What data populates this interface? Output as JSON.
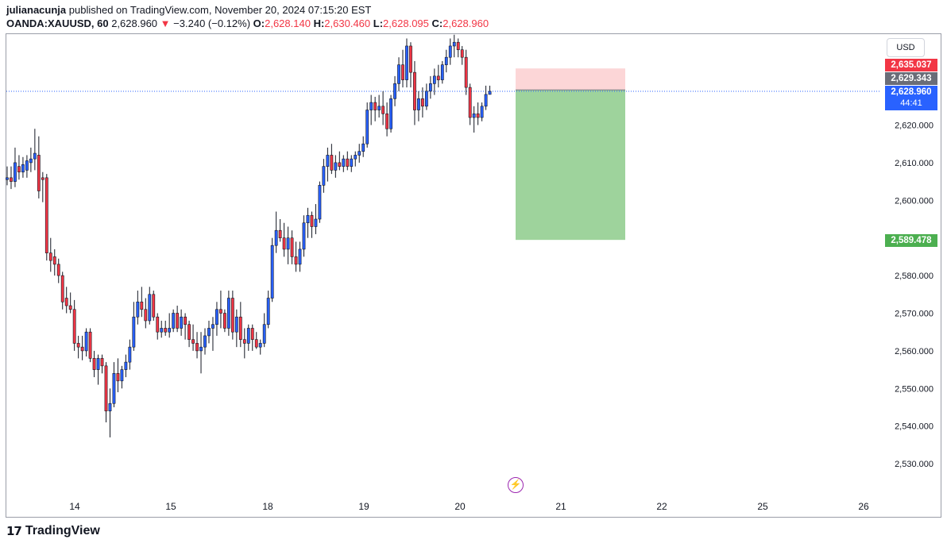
{
  "header": {
    "author": "julianacunja",
    "published_text": "published on TradingView.com, November 20, 2024 07:15:20 EST",
    "symbol": "OANDA:XAUUSD, 60",
    "last": "2,628.960",
    "change": "−3.240 (−0.12%)",
    "change_arrow": "▼",
    "open_label": "O:",
    "open": "2,628.140",
    "high_label": "H:",
    "high": "2,630.460",
    "low_label": "L:",
    "low": "2,628.095",
    "close_label": "C:",
    "close": "2,628.960"
  },
  "scale": {
    "currency_button": "USD"
  },
  "price_tags": {
    "stop": "2,635.037",
    "entry": "2,629.343",
    "current": "2,628.960",
    "countdown": "44:41",
    "target": "2,589.478"
  },
  "brand": {
    "name": "TradingView"
  },
  "icons": {
    "logo": "tradingview-logo-icon",
    "event": "lightning-bolt-icon"
  },
  "colors": {
    "up_candle": "#2962ff",
    "down_candle": "#f23645",
    "wick": "#131722",
    "stop_zone": "#fcd6d7",
    "target_zone": "#9ed39c",
    "current_price_line": "#2962ff"
  },
  "chart_data": {
    "type": "candlestick",
    "symbol": "OANDA:XAUUSD",
    "interval": "60",
    "x_ticks": [
      "14",
      "15",
      "18",
      "19",
      "20",
      "21",
      "22",
      "25",
      "26"
    ],
    "y_ticks": [
      "2,530.000",
      "2,540.000",
      "2,550.000",
      "2,560.000",
      "2,570.000",
      "2,580.000",
      "2,600.000",
      "2,610.000",
      "2,620.000"
    ],
    "ylim": [
      2520,
      2648
    ],
    "grid": false,
    "position_tool": {
      "type": "short",
      "entry": 2629.343,
      "stop": 2635.037,
      "target": 2589.478
    },
    "current_price": 2628.96,
    "candles": [
      {
        "o": 2605.5,
        "h": 2609.0,
        "l": 2604.0,
        "c": 2606.0
      },
      {
        "o": 2606.0,
        "h": 2609.0,
        "l": 2603.0,
        "c": 2605.0
      },
      {
        "o": 2605.0,
        "h": 2614.0,
        "l": 2603.5,
        "c": 2610.0
      },
      {
        "o": 2609.0,
        "h": 2612.0,
        "l": 2605.5,
        "c": 2607.5
      },
      {
        "o": 2607.5,
        "h": 2611.5,
        "l": 2606.0,
        "c": 2609.5
      },
      {
        "o": 2608.0,
        "h": 2612.0,
        "l": 2606.0,
        "c": 2610.5
      },
      {
        "o": 2610.0,
        "h": 2614.0,
        "l": 2607.5,
        "c": 2611.0
      },
      {
        "o": 2611.0,
        "h": 2619.0,
        "l": 2608.0,
        "c": 2612.5
      },
      {
        "o": 2612.0,
        "h": 2617.0,
        "l": 2600.5,
        "c": 2602.5
      },
      {
        "o": 2606.0,
        "h": 2607.5,
        "l": 2599.5,
        "c": 2605.5
      },
      {
        "o": 2606.0,
        "h": 2607.0,
        "l": 2584.0,
        "c": 2586.0
      },
      {
        "o": 2586.0,
        "h": 2590.0,
        "l": 2581.0,
        "c": 2584.0
      },
      {
        "o": 2585.0,
        "h": 2587.0,
        "l": 2580.0,
        "c": 2583.0
      },
      {
        "o": 2583.0,
        "h": 2584.5,
        "l": 2578.0,
        "c": 2580.0
      },
      {
        "o": 2580.0,
        "h": 2581.0,
        "l": 2571.0,
        "c": 2573.0
      },
      {
        "o": 2574.0,
        "h": 2577.0,
        "l": 2570.0,
        "c": 2572.0
      },
      {
        "o": 2572.0,
        "h": 2575.5,
        "l": 2570.0,
        "c": 2571.0
      },
      {
        "o": 2571.0,
        "h": 2573.5,
        "l": 2560.0,
        "c": 2562.0
      },
      {
        "o": 2562.0,
        "h": 2564.0,
        "l": 2558.0,
        "c": 2561.0
      },
      {
        "o": 2561.0,
        "h": 2564.0,
        "l": 2557.5,
        "c": 2560.0
      },
      {
        "o": 2560.0,
        "h": 2566.0,
        "l": 2558.5,
        "c": 2565.0
      },
      {
        "o": 2565.0,
        "h": 2566.0,
        "l": 2557.0,
        "c": 2558.0
      },
      {
        "o": 2558.0,
        "h": 2560.0,
        "l": 2553.0,
        "c": 2555.0
      },
      {
        "o": 2555.0,
        "h": 2559.0,
        "l": 2551.0,
        "c": 2558.0
      },
      {
        "o": 2558.0,
        "h": 2559.0,
        "l": 2554.0,
        "c": 2556.0
      },
      {
        "o": 2556.0,
        "h": 2557.0,
        "l": 2541.0,
        "c": 2544.0
      },
      {
        "o": 2544.0,
        "h": 2550.0,
        "l": 2537.0,
        "c": 2546.0
      },
      {
        "o": 2546.0,
        "h": 2557.0,
        "l": 2545.0,
        "c": 2554.0
      },
      {
        "o": 2554.0,
        "h": 2558.0,
        "l": 2549.0,
        "c": 2552.0
      },
      {
        "o": 2552.0,
        "h": 2556.0,
        "l": 2550.0,
        "c": 2555.0
      },
      {
        "o": 2555.0,
        "h": 2559.0,
        "l": 2553.0,
        "c": 2557.0
      },
      {
        "o": 2557.0,
        "h": 2563.0,
        "l": 2555.0,
        "c": 2561.0
      },
      {
        "o": 2561.0,
        "h": 2573.0,
        "l": 2560.0,
        "c": 2569.0
      },
      {
        "o": 2569.0,
        "h": 2576.0,
        "l": 2567.0,
        "c": 2573.0
      },
      {
        "o": 2573.0,
        "h": 2577.0,
        "l": 2569.0,
        "c": 2571.0
      },
      {
        "o": 2571.0,
        "h": 2574.0,
        "l": 2566.0,
        "c": 2568.0
      },
      {
        "o": 2568.0,
        "h": 2577.0,
        "l": 2567.0,
        "c": 2575.0
      },
      {
        "o": 2575.0,
        "h": 2576.0,
        "l": 2568.0,
        "c": 2569.0
      },
      {
        "o": 2569.0,
        "h": 2570.0,
        "l": 2563.0,
        "c": 2565.0
      },
      {
        "o": 2565.0,
        "h": 2568.0,
        "l": 2563.5,
        "c": 2566.0
      },
      {
        "o": 2566.0,
        "h": 2568.0,
        "l": 2564.0,
        "c": 2565.0
      },
      {
        "o": 2565.0,
        "h": 2570.0,
        "l": 2563.5,
        "c": 2566.0
      },
      {
        "o": 2566.0,
        "h": 2571.0,
        "l": 2565.0,
        "c": 2570.0
      },
      {
        "o": 2570.0,
        "h": 2572.0,
        "l": 2565.0,
        "c": 2566.0
      },
      {
        "o": 2566.0,
        "h": 2571.0,
        "l": 2564.0,
        "c": 2569.0
      },
      {
        "o": 2569.0,
        "h": 2570.0,
        "l": 2563.0,
        "c": 2567.0
      },
      {
        "o": 2567.0,
        "h": 2568.0,
        "l": 2561.0,
        "c": 2563.0
      },
      {
        "o": 2563.0,
        "h": 2567.0,
        "l": 2560.0,
        "c": 2562.0
      },
      {
        "o": 2562.0,
        "h": 2565.0,
        "l": 2558.0,
        "c": 2560.0
      },
      {
        "o": 2560.0,
        "h": 2565.0,
        "l": 2554.0,
        "c": 2561.0
      },
      {
        "o": 2561.0,
        "h": 2566.0,
        "l": 2559.0,
        "c": 2564.0
      },
      {
        "o": 2564.0,
        "h": 2568.0,
        "l": 2562.0,
        "c": 2566.0
      },
      {
        "o": 2566.0,
        "h": 2569.0,
        "l": 2560.0,
        "c": 2567.0
      },
      {
        "o": 2567.0,
        "h": 2573.0,
        "l": 2564.0,
        "c": 2571.0
      },
      {
        "o": 2571.0,
        "h": 2576.0,
        "l": 2566.0,
        "c": 2570.0
      },
      {
        "o": 2570.0,
        "h": 2571.0,
        "l": 2565.0,
        "c": 2566.0
      },
      {
        "o": 2566.0,
        "h": 2576.0,
        "l": 2564.0,
        "c": 2574.0
      },
      {
        "o": 2574.0,
        "h": 2576.0,
        "l": 2563.0,
        "c": 2565.0
      },
      {
        "o": 2565.0,
        "h": 2571.0,
        "l": 2561.0,
        "c": 2569.0
      },
      {
        "o": 2569.0,
        "h": 2573.0,
        "l": 2561.0,
        "c": 2563.0
      },
      {
        "o": 2563.0,
        "h": 2566.0,
        "l": 2558.0,
        "c": 2562.0
      },
      {
        "o": 2562.0,
        "h": 2567.0,
        "l": 2560.0,
        "c": 2566.0
      },
      {
        "o": 2566.0,
        "h": 2567.0,
        "l": 2560.0,
        "c": 2563.0
      },
      {
        "o": 2563.0,
        "h": 2565.0,
        "l": 2560.5,
        "c": 2561.0
      },
      {
        "o": 2561.0,
        "h": 2563.0,
        "l": 2559.0,
        "c": 2562.0
      },
      {
        "o": 2562.0,
        "h": 2570.0,
        "l": 2561.0,
        "c": 2567.0
      },
      {
        "o": 2567.0,
        "h": 2576.0,
        "l": 2566.0,
        "c": 2574.0
      },
      {
        "o": 2574.0,
        "h": 2590.0,
        "l": 2573.0,
        "c": 2588.0
      },
      {
        "o": 2588.0,
        "h": 2597.0,
        "l": 2586.0,
        "c": 2592.0
      },
      {
        "o": 2592.0,
        "h": 2595.0,
        "l": 2589.0,
        "c": 2590.0
      },
      {
        "o": 2590.0,
        "h": 2594.0,
        "l": 2585.0,
        "c": 2587.0
      },
      {
        "o": 2587.0,
        "h": 2593.0,
        "l": 2583.0,
        "c": 2590.0
      },
      {
        "o": 2590.0,
        "h": 2592.0,
        "l": 2583.0,
        "c": 2585.0
      },
      {
        "o": 2585.0,
        "h": 2589.0,
        "l": 2581.0,
        "c": 2583.0
      },
      {
        "o": 2583.0,
        "h": 2589.0,
        "l": 2581.0,
        "c": 2587.0
      },
      {
        "o": 2587.0,
        "h": 2596.0,
        "l": 2585.0,
        "c": 2594.0
      },
      {
        "o": 2594.0,
        "h": 2598.0,
        "l": 2590.0,
        "c": 2596.0
      },
      {
        "o": 2596.0,
        "h": 2597.0,
        "l": 2590.0,
        "c": 2593.0
      },
      {
        "o": 2593.0,
        "h": 2599.0,
        "l": 2591.0,
        "c": 2595.0
      },
      {
        "o": 2595.0,
        "h": 2605.0,
        "l": 2594.0,
        "c": 2604.0
      },
      {
        "o": 2604.0,
        "h": 2611.0,
        "l": 2602.0,
        "c": 2609.0
      },
      {
        "o": 2609.0,
        "h": 2614.0,
        "l": 2605.0,
        "c": 2612.0
      },
      {
        "o": 2612.0,
        "h": 2615.0,
        "l": 2607.0,
        "c": 2608.0
      },
      {
        "o": 2608.0,
        "h": 2612.0,
        "l": 2606.0,
        "c": 2610.0
      },
      {
        "o": 2610.0,
        "h": 2613.0,
        "l": 2608.0,
        "c": 2609.0
      },
      {
        "o": 2609.0,
        "h": 2612.0,
        "l": 2607.5,
        "c": 2611.0
      },
      {
        "o": 2611.0,
        "h": 2613.0,
        "l": 2608.0,
        "c": 2609.0
      },
      {
        "o": 2609.0,
        "h": 2612.0,
        "l": 2607.5,
        "c": 2611.0
      },
      {
        "o": 2611.0,
        "h": 2613.0,
        "l": 2609.0,
        "c": 2612.0
      },
      {
        "o": 2612.0,
        "h": 2615.0,
        "l": 2610.0,
        "c": 2613.0
      },
      {
        "o": 2613.0,
        "h": 2617.0,
        "l": 2611.5,
        "c": 2615.0
      },
      {
        "o": 2615.0,
        "h": 2626.0,
        "l": 2614.0,
        "c": 2624.0
      },
      {
        "o": 2624.0,
        "h": 2628.0,
        "l": 2620.0,
        "c": 2626.0
      },
      {
        "o": 2626.0,
        "h": 2627.5,
        "l": 2621.0,
        "c": 2624.0
      },
      {
        "o": 2624.0,
        "h": 2628.0,
        "l": 2622.0,
        "c": 2625.0
      },
      {
        "o": 2625.0,
        "h": 2629.0,
        "l": 2620.0,
        "c": 2623.0
      },
      {
        "o": 2623.0,
        "h": 2626.0,
        "l": 2617.0,
        "c": 2619.0
      },
      {
        "o": 2619.0,
        "h": 2628.0,
        "l": 2618.0,
        "c": 2627.0
      },
      {
        "o": 2627.0,
        "h": 2633.0,
        "l": 2625.0,
        "c": 2631.0
      },
      {
        "o": 2631.0,
        "h": 2638.0,
        "l": 2629.0,
        "c": 2636.0
      },
      {
        "o": 2636.0,
        "h": 2640.0,
        "l": 2630.0,
        "c": 2632.0
      },
      {
        "o": 2632.0,
        "h": 2643.0,
        "l": 2630.0,
        "c": 2641.0
      },
      {
        "o": 2641.0,
        "h": 2642.0,
        "l": 2630.0,
        "c": 2634.0
      },
      {
        "o": 2634.0,
        "h": 2637.0,
        "l": 2620.0,
        "c": 2624.0
      },
      {
        "o": 2624.0,
        "h": 2629.0,
        "l": 2621.0,
        "c": 2627.0
      },
      {
        "o": 2627.0,
        "h": 2630.0,
        "l": 2622.0,
        "c": 2625.0
      },
      {
        "o": 2625.0,
        "h": 2631.0,
        "l": 2624.0,
        "c": 2629.0
      },
      {
        "o": 2629.0,
        "h": 2633.0,
        "l": 2627.0,
        "c": 2631.0
      },
      {
        "o": 2631.0,
        "h": 2635.0,
        "l": 2628.0,
        "c": 2633.0
      },
      {
        "o": 2633.0,
        "h": 2636.0,
        "l": 2630.0,
        "c": 2632.0
      },
      {
        "o": 2632.0,
        "h": 2637.0,
        "l": 2631.0,
        "c": 2636.0
      },
      {
        "o": 2636.0,
        "h": 2640.0,
        "l": 2634.0,
        "c": 2638.0
      },
      {
        "o": 2638.0,
        "h": 2643.0,
        "l": 2636.0,
        "c": 2641.0
      },
      {
        "o": 2641.0,
        "h": 2644.0,
        "l": 2638.0,
        "c": 2642.0
      },
      {
        "o": 2642.0,
        "h": 2643.0,
        "l": 2638.0,
        "c": 2640.0
      },
      {
        "o": 2640.0,
        "h": 2641.0,
        "l": 2636.0,
        "c": 2638.0
      },
      {
        "o": 2638.0,
        "h": 2640.0,
        "l": 2628.0,
        "c": 2630.0
      },
      {
        "o": 2630.0,
        "h": 2631.0,
        "l": 2620.0,
        "c": 2622.0
      },
      {
        "o": 2622.0,
        "h": 2625.0,
        "l": 2618.0,
        "c": 2623.0
      },
      {
        "o": 2623.0,
        "h": 2626.0,
        "l": 2620.0,
        "c": 2622.0
      },
      {
        "o": 2622.0,
        "h": 2626.0,
        "l": 2621.0,
        "c": 2625.0
      },
      {
        "o": 2625.0,
        "h": 2630.46,
        "l": 2624.0,
        "c": 2628.14
      },
      {
        "o": 2628.14,
        "h": 2630.46,
        "l": 2628.095,
        "c": 2628.96
      }
    ]
  }
}
